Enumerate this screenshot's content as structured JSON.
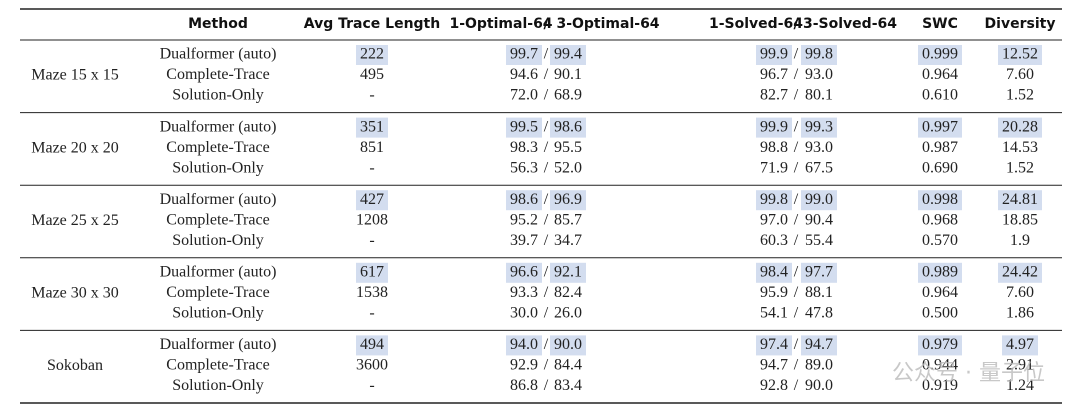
{
  "header": {
    "method": "Method",
    "trace": "Avg Trace Length",
    "opt1": "1-Optimal-64",
    "opt3": "3-Optimal-64",
    "sol1": "1-Solved-64",
    "sol3": "3-Solved-64",
    "swc": "SWC",
    "diversity": "Diversity",
    "separator": "/"
  },
  "highlight_color": "#d3ddef",
  "groups": [
    {
      "name": "Maze 15 x 15",
      "rows": [
        {
          "method": "Dualformer (auto)",
          "trace": "222",
          "opt1": "99.7",
          "opt3": "99.4",
          "sol1": "99.9",
          "sol3": "99.8",
          "swc": "0.999",
          "diversity": "12.52",
          "highlight": true
        },
        {
          "method": "Complete-Trace",
          "trace": "495",
          "opt1": "94.6",
          "opt3": "90.1",
          "sol1": "96.7",
          "sol3": "93.0",
          "swc": "0.964",
          "diversity": "7.60",
          "highlight": false
        },
        {
          "method": "Solution-Only",
          "trace": "-",
          "opt1": "72.0",
          "opt3": "68.9",
          "sol1": "82.7",
          "sol3": "80.1",
          "swc": "0.610",
          "diversity": "1.52",
          "highlight": false
        }
      ]
    },
    {
      "name": "Maze 20 x 20",
      "rows": [
        {
          "method": "Dualformer (auto)",
          "trace": "351",
          "opt1": "99.5",
          "opt3": "98.6",
          "sol1": "99.9",
          "sol3": "99.3",
          "swc": "0.997",
          "diversity": "20.28",
          "highlight": true
        },
        {
          "method": "Complete-Trace",
          "trace": "851",
          "opt1": "98.3",
          "opt3": "95.5",
          "sol1": "98.8",
          "sol3": "93.0",
          "swc": "0.987",
          "diversity": "14.53",
          "highlight": false
        },
        {
          "method": "Solution-Only",
          "trace": "-",
          "opt1": "56.3",
          "opt3": "52.0",
          "sol1": "71.9",
          "sol3": "67.5",
          "swc": "0.690",
          "diversity": "1.52",
          "highlight": false
        }
      ]
    },
    {
      "name": "Maze 25 x 25",
      "rows": [
        {
          "method": "Dualformer (auto)",
          "trace": "427",
          "opt1": "98.6",
          "opt3": "96.9",
          "sol1": "99.8",
          "sol3": "99.0",
          "swc": "0.998",
          "diversity": "24.81",
          "highlight": true
        },
        {
          "method": "Complete-Trace",
          "trace": "1208",
          "opt1": "95.2",
          "opt3": "85.7",
          "sol1": "97.0",
          "sol3": "90.4",
          "swc": "0.968",
          "diversity": "18.85",
          "highlight": false
        },
        {
          "method": "Solution-Only",
          "trace": "-",
          "opt1": "39.7",
          "opt3": "34.7",
          "sol1": "60.3",
          "sol3": "55.4",
          "swc": "0.570",
          "diversity": "1.9",
          "highlight": false
        }
      ]
    },
    {
      "name": "Maze 30 x 30",
      "rows": [
        {
          "method": "Dualformer (auto)",
          "trace": "617",
          "opt1": "96.6",
          "opt3": "92.1",
          "sol1": "98.4",
          "sol3": "97.7",
          "swc": "0.989",
          "diversity": "24.42",
          "highlight": true
        },
        {
          "method": "Complete-Trace",
          "trace": "1538",
          "opt1": "93.3",
          "opt3": "82.4",
          "sol1": "95.9",
          "sol3": "88.1",
          "swc": "0.964",
          "diversity": "7.60",
          "highlight": false
        },
        {
          "method": "Solution-Only",
          "trace": "-",
          "opt1": "30.0",
          "opt3": "26.0",
          "sol1": "54.1",
          "sol3": "47.8",
          "swc": "0.500",
          "diversity": "1.86",
          "highlight": false
        }
      ]
    },
    {
      "name": "Sokoban",
      "rows": [
        {
          "method": "Dualformer (auto)",
          "trace": "494",
          "opt1": "94.0",
          "opt3": "90.0",
          "sol1": "97.4",
          "sol3": "94.7",
          "swc": "0.979",
          "diversity": "4.97",
          "highlight": true
        },
        {
          "method": "Complete-Trace",
          "trace": "3600",
          "opt1": "92.9",
          "opt3": "84.4",
          "sol1": "94.7",
          "sol3": "89.0",
          "swc": "0.944",
          "diversity": "2.91",
          "highlight": false
        },
        {
          "method": "Solution-Only",
          "trace": "-",
          "opt1": "86.8",
          "opt3": "83.4",
          "sol1": "92.8",
          "sol3": "90.0",
          "swc": "0.919",
          "diversity": "1.24",
          "highlight": false
        }
      ]
    }
  ],
  "watermark": "公众号 · 量子位"
}
